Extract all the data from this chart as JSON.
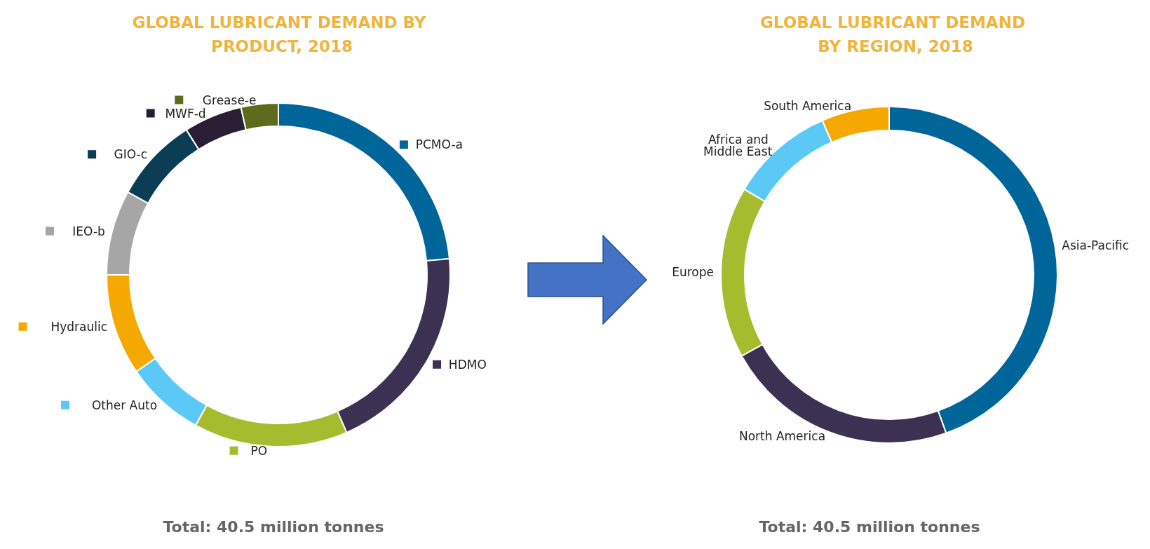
{
  "chart_data": [
    {
      "type": "donut",
      "title": "GLOBAL LUBRICANT DEMAND BY PRODUCT, 2018",
      "categories": [
        "PCMO-a",
        "HDMO",
        "PO",
        "Other Auto",
        "Hydraulic",
        "IEO-b",
        "GIO-c",
        "MWF-d",
        "Grease-e"
      ],
      "values": [
        23.5,
        20,
        14.5,
        7.5,
        9.5,
        8,
        8,
        5.5,
        3.5
      ],
      "colors": [
        "#006699",
        "#3d3153",
        "#a5bc2e",
        "#5bc8f5",
        "#f5a800",
        "#a6a6a6",
        "#0b3d55",
        "#2a1e35",
        "#5e6b1d"
      ],
      "legend": "left",
      "annotations": [
        "Total: 40.5 million tonnes"
      ]
    },
    {
      "type": "donut",
      "title": "GLOBAL LUBRICANT DEMAND BY REGION, 2018",
      "categories": [
        "Asia-Pacific",
        "North America",
        "Europe",
        "Africa and Middle East",
        "South America"
      ],
      "values": [
        44.5,
        22.5,
        16.5,
        10,
        6.5
      ],
      "colors": [
        "#006699",
        "#3d3153",
        "#a5bc2e",
        "#5bc8f5",
        "#f5a800"
      ],
      "annotations": [
        "Total: 40.5 million tonnes"
      ]
    }
  ]
}
